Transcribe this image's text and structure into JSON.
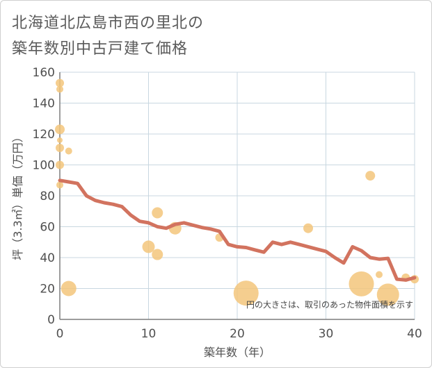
{
  "title_line1": "北海道北広島市西の里北の",
  "title_line2": "築年数別中古戸建て価格",
  "note": "円の大きさは、取引のあった物件面積を示す",
  "colors": {
    "line": "#d2735f",
    "bubble": "#f3c57b",
    "grid": "#c8d7e0",
    "axis": "#7d7d7d"
  },
  "chart_data": {
    "type": "scatter",
    "xlabel": "築年数（年）",
    "ylabel": "坪（3.3㎡）単価（万円）",
    "xlim": [
      0,
      40
    ],
    "ylim": [
      0,
      160
    ],
    "xticks": [
      "0",
      "10",
      "20",
      "30",
      "40"
    ],
    "yticks": [
      "0",
      "20",
      "40",
      "60",
      "80",
      "100",
      "120",
      "140",
      "160"
    ],
    "grid": true,
    "series": [
      {
        "type": "line",
        "x": [
          0,
          1,
          2,
          3,
          4,
          5,
          6,
          7,
          8,
          9,
          10,
          11,
          12,
          13,
          14,
          15,
          16,
          17,
          18,
          19,
          20,
          21,
          22,
          23,
          24,
          25,
          26,
          27,
          28,
          29,
          30,
          31,
          32,
          33,
          34,
          35,
          36,
          37,
          38,
          39,
          40
        ],
        "y": [
          90,
          89,
          88,
          80,
          77,
          75.5,
          74.5,
          73,
          67.5,
          63.5,
          62.5,
          60,
          59,
          61.5,
          62.5,
          61,
          59.5,
          58.5,
          57,
          48.5,
          47,
          46.5,
          45,
          43.5,
          50,
          48.5,
          50,
          48.5,
          47,
          45.5,
          44,
          40,
          36.5,
          47,
          44.5,
          40,
          39,
          39.5,
          26,
          25.5,
          27
        ]
      },
      {
        "type": "bubble",
        "points": [
          {
            "x": 0,
            "y": 153,
            "r": 6
          },
          {
            "x": 0,
            "y": 149,
            "r": 5
          },
          {
            "x": 0,
            "y": 123,
            "r": 7
          },
          {
            "x": 0,
            "y": 116,
            "r": 4
          },
          {
            "x": 0,
            "y": 111,
            "r": 6
          },
          {
            "x": 1,
            "y": 109,
            "r": 5
          },
          {
            "x": 0,
            "y": 100,
            "r": 6
          },
          {
            "x": 0,
            "y": 87,
            "r": 5
          },
          {
            "x": 1,
            "y": 20,
            "r": 11
          },
          {
            "x": 10,
            "y": 47,
            "r": 9
          },
          {
            "x": 11,
            "y": 42,
            "r": 8
          },
          {
            "x": 11,
            "y": 69,
            "r": 8
          },
          {
            "x": 13,
            "y": 59,
            "r": 9
          },
          {
            "x": 18,
            "y": 53,
            "r": 6
          },
          {
            "x": 21,
            "y": 17,
            "r": 18
          },
          {
            "x": 28,
            "y": 59,
            "r": 7
          },
          {
            "x": 34,
            "y": 23,
            "r": 18
          },
          {
            "x": 35,
            "y": 93,
            "r": 7
          },
          {
            "x": 36,
            "y": 29,
            "r": 5
          },
          {
            "x": 37,
            "y": 16,
            "r": 16
          },
          {
            "x": 39,
            "y": 27,
            "r": 6
          },
          {
            "x": 40,
            "y": 26,
            "r": 6
          }
        ]
      }
    ]
  }
}
